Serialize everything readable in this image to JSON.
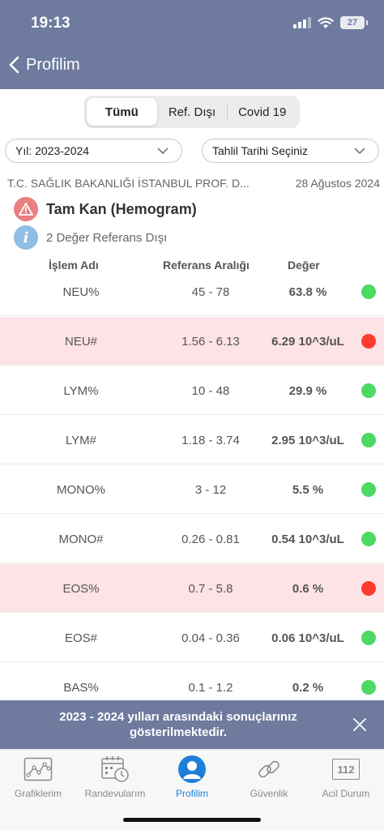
{
  "status_bar": {
    "time": "19:13",
    "battery": "27"
  },
  "header": {
    "back_title": "Profilim"
  },
  "segments": [
    {
      "label": "Tümü",
      "active": true
    },
    {
      "label": "Ref. Dışı",
      "active": false
    },
    {
      "label": "Covid 19",
      "active": false
    }
  ],
  "filters": {
    "year": "Yıl: 2023-2024",
    "date": "Tahlil Tarihi Seçiniz"
  },
  "lab": {
    "name": "T.C. SAĞLIK BAKANLIĞI İSTANBUL PROF. D...",
    "date": "28 Ağustos 2024",
    "test_title": "Tam Kan (Hemogram)",
    "info": "2 Değer Referans Dışı"
  },
  "columns": {
    "name": "İşlem Adı",
    "ref": "Referans Aralığı",
    "value": "Değer"
  },
  "rows": [
    {
      "name": "NEU%",
      "ref": "45 - 78",
      "value": "63.8 %",
      "status": "normal"
    },
    {
      "name": "NEU#",
      "ref": "1.56 - 6.13",
      "value": "6.29 10^3/uL",
      "status": "out"
    },
    {
      "name": "LYM%",
      "ref": "10 - 48",
      "value": "29.9 %",
      "status": "normal"
    },
    {
      "name": "LYM#",
      "ref": "1.18 - 3.74",
      "value": "2.95 10^3/uL",
      "status": "normal"
    },
    {
      "name": "MONO%",
      "ref": "3 - 12",
      "value": "5.5 %",
      "status": "normal"
    },
    {
      "name": "MONO#",
      "ref": "0.26 - 0.81",
      "value": "0.54 10^3/uL",
      "status": "normal"
    },
    {
      "name": "EOS%",
      "ref": "0.7 - 5.8",
      "value": "0.6 %",
      "status": "out"
    },
    {
      "name": "EOS#",
      "ref": "0.04 - 0.36",
      "value": "0.06 10^3/uL",
      "status": "normal"
    },
    {
      "name": "BAS%",
      "ref": "0.1 - 1.2",
      "value": "0.2 %",
      "status": "normal"
    }
  ],
  "status_colors": {
    "normal": "#4cd964",
    "out": "#ff3b30"
  },
  "banner": {
    "text": "2023 - 2024 yılları arasındaki sonuçlarınız gösterilmektedir."
  },
  "tabs": [
    {
      "label": "Grafiklerim",
      "icon": "chart-icon",
      "active": false
    },
    {
      "label": "Randevularım",
      "icon": "calendar-icon",
      "active": false
    },
    {
      "label": "Profilim",
      "icon": "profile-icon",
      "active": true
    },
    {
      "label": "Güvenlik",
      "icon": "link-icon",
      "active": false
    },
    {
      "label": "Acil Durum",
      "icon": "emergency-112-icon",
      "active": false,
      "badge": "112"
    }
  ]
}
